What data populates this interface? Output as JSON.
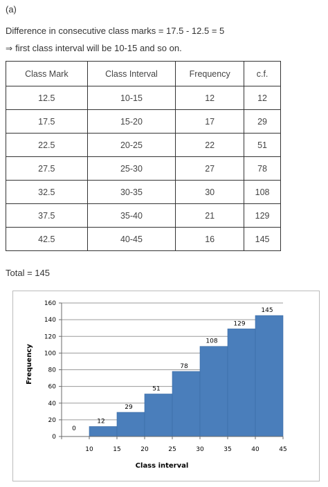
{
  "part_label": "(a)",
  "difference_text": "Difference in consecutive class marks = 17.5 - 12.5 = 5",
  "implies_symbol": "⇒",
  "implies_text": "first class interval will be 10-15 and so on.",
  "table": {
    "headers": [
      "Class Mark",
      "Class Interval",
      "Frequency",
      "c.f."
    ],
    "rows": [
      [
        "12.5",
        "10-15",
        "12",
        "12"
      ],
      [
        "17.5",
        "15-20",
        "17",
        "29"
      ],
      [
        "22.5",
        "20-25",
        "22",
        "51"
      ],
      [
        "27.5",
        "25-30",
        "27",
        "78"
      ],
      [
        "32.5",
        "30-35",
        "30",
        "108"
      ],
      [
        "37.5",
        "35-40",
        "21",
        "129"
      ],
      [
        "42.5",
        "40-45",
        "16",
        "145"
      ]
    ]
  },
  "total_text": "Total = 145",
  "chart_data": {
    "type": "bar",
    "categories": [
      "10-15",
      "15-20",
      "20-25",
      "25-30",
      "30-35",
      "35-40",
      "40-45"
    ],
    "bin_edges": [
      10,
      15,
      20,
      25,
      30,
      35,
      40,
      45
    ],
    "values": [
      12,
      29,
      51,
      78,
      108,
      129,
      145
    ],
    "extra_labels": [
      {
        "x": 5,
        "y": 0,
        "text": "0"
      }
    ],
    "xlabel": "Class interval",
    "ylabel": "Frequency",
    "xlim": [
      5,
      45
    ],
    "ylim": [
      0,
      160
    ],
    "xticks": [
      10,
      15,
      20,
      25,
      30,
      35,
      40,
      45
    ],
    "yticks": [
      0,
      20,
      40,
      60,
      80,
      100,
      120,
      140,
      160
    ],
    "grid": true,
    "bar_color": "#4a7ebb",
    "bar_edge_color": "#3a6aa5"
  }
}
